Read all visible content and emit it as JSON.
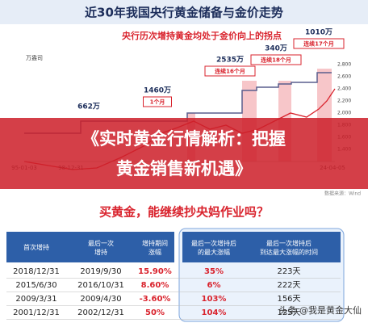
{
  "header": {
    "title": "近30年我国央行黄金储备与金价走势"
  },
  "chart": {
    "subtitle": "央行历次增持黄金均处于金价向上的拐点",
    "left_unit": "万盎司",
    "right_ticks": [
      "2,800",
      "2,600",
      "2,400",
      "2,200",
      "2,000",
      "1,800",
      "1,600",
      "1,400"
    ],
    "x_labels": [
      "95-01-03",
      "98-12-31",
      "24-04-05"
    ],
    "annotations": [
      {
        "amount": "662万",
        "period": null
      },
      {
        "amount": "1460万",
        "period": "1个月"
      },
      {
        "amount": "2535万",
        "period": "连续16个月"
      },
      {
        "amount": "340万",
        "period": "连续18个月"
      },
      {
        "amount": "1010万",
        "period": "连续17个月"
      }
    ],
    "source": "数据来源：Wind"
  },
  "banner": {
    "lines": [
      "《实时黄金行情解析：把握",
      "黄金销售新机遇》"
    ]
  },
  "question": "买黄金，能继续抄央妈作业吗？",
  "table": {
    "headers": [
      "首次增持",
      "最后一次\n增持",
      "增持期间\n涨幅",
      "最后一次增持后\n的最大涨幅",
      "最后一次增持后\n到达最大涨幅的时间"
    ],
    "rows": [
      [
        "2018/12/31",
        "2019/9/30",
        "15.90%",
        "35%",
        "223天"
      ],
      [
        "2015/6/30",
        "2016/10/31",
        "8.60%",
        "6%",
        "222天"
      ],
      [
        "2009/3/31",
        "2009/4/30",
        "-3.60%",
        "103%",
        "156天"
      ],
      [
        "2001/12/31",
        "2002/12/31",
        "50%",
        "104%",
        "125天"
      ]
    ]
  },
  "watermark": "头条 @我是黄金大仙"
}
